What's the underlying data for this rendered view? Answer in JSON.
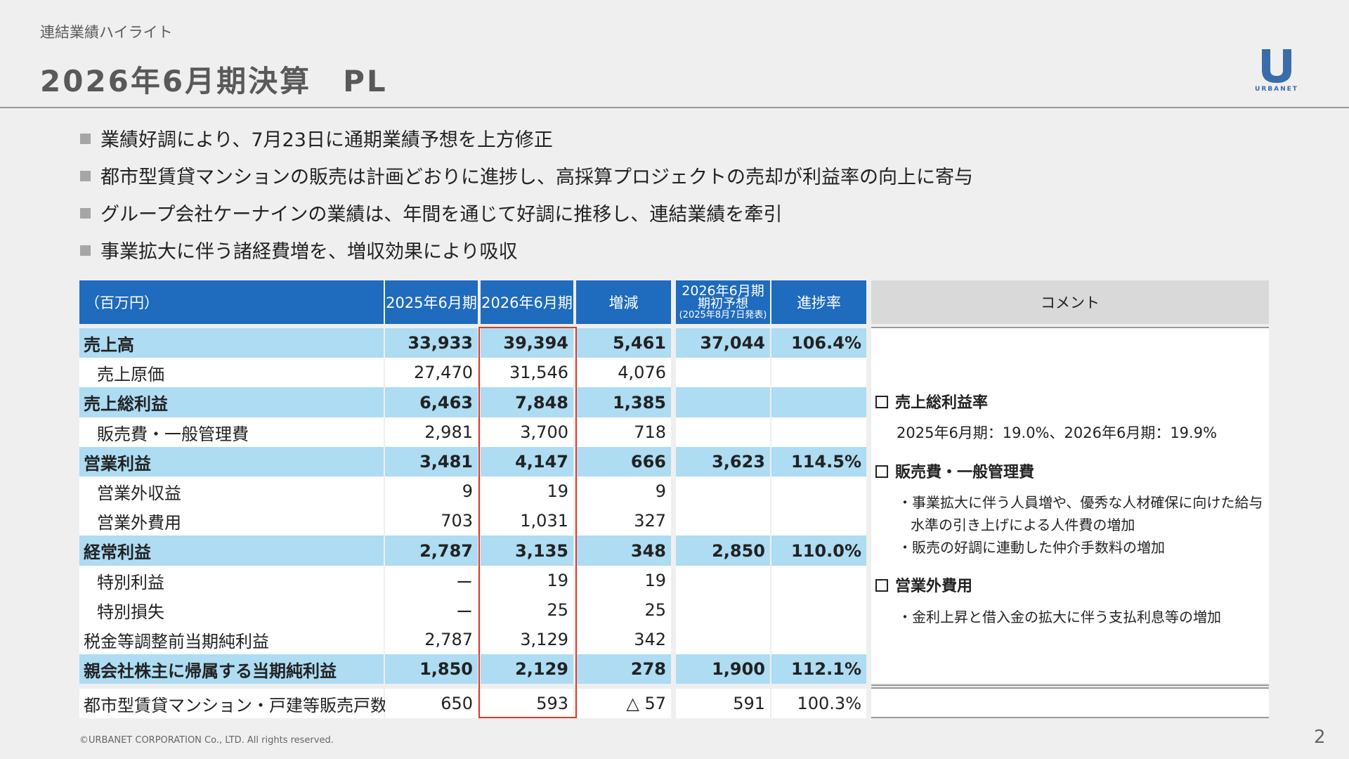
{
  "header": {
    "section_label": "連結業績ハイライト",
    "title": "2026年6月期決算　PL",
    "logo_text": "URBANET"
  },
  "bullets": [
    "業績好調により、7月23日に通期業績予想を上方修正",
    "都市型賃貸マンションの販売は計画どおりに進捗し、高採算プロジェクトの売却が利益率の向上に寄与",
    "グループ会社ケーナインの業績は、年間を通じて好調に推移し、連結業績を牽引",
    "事業拡大に伴う諸経費増を、増収効果により吸収"
  ],
  "table": {
    "headers": {
      "unit": "（百万円）",
      "fy2025": "2025年6月期",
      "fy2026": "2026年6月期",
      "change": "増減",
      "forecast_line1": "2026年6月期",
      "forecast_line2": "期初予想",
      "forecast_line3": "(2025年8月7日発表)",
      "progress": "進捗率"
    },
    "rows": [
      {
        "label": "売上高",
        "fy2025": "33,933",
        "fy2026": "39,394",
        "change": "5,461",
        "forecast": "37,044",
        "progress": "106.4%",
        "highlight": true,
        "indent": false
      },
      {
        "label": "売上原価",
        "fy2025": "27,470",
        "fy2026": "31,546",
        "change": "4,076",
        "forecast": "",
        "progress": "",
        "highlight": false,
        "indent": true
      },
      {
        "label": "売上総利益",
        "fy2025": "6,463",
        "fy2026": "7,848",
        "change": "1,385",
        "forecast": "",
        "progress": "",
        "highlight": true,
        "indent": false
      },
      {
        "label": "販売費・一般管理費",
        "fy2025": "2,981",
        "fy2026": "3,700",
        "change": "718",
        "forecast": "",
        "progress": "",
        "highlight": false,
        "indent": true
      },
      {
        "label": "営業利益",
        "fy2025": "3,481",
        "fy2026": "4,147",
        "change": "666",
        "forecast": "3,623",
        "progress": "114.5%",
        "highlight": true,
        "indent": false
      },
      {
        "label": "営業外収益",
        "fy2025": "9",
        "fy2026": "19",
        "change": "9",
        "forecast": "",
        "progress": "",
        "highlight": false,
        "indent": true
      },
      {
        "label": "営業外費用",
        "fy2025": "703",
        "fy2026": "1,031",
        "change": "327",
        "forecast": "",
        "progress": "",
        "highlight": false,
        "indent": true
      },
      {
        "label": "経常利益",
        "fy2025": "2,787",
        "fy2026": "3,135",
        "change": "348",
        "forecast": "2,850",
        "progress": "110.0%",
        "highlight": true,
        "indent": false
      },
      {
        "label": "特別利益",
        "fy2025": "ー",
        "fy2026": "19",
        "change": "19",
        "forecast": "",
        "progress": "",
        "highlight": false,
        "indent": true
      },
      {
        "label": "特別損失",
        "fy2025": "ー",
        "fy2026": "25",
        "change": "25",
        "forecast": "",
        "progress": "",
        "highlight": false,
        "indent": true
      },
      {
        "label": "税金等調整前当期純利益",
        "fy2025": "2,787",
        "fy2026": "3,129",
        "change": "342",
        "forecast": "",
        "progress": "",
        "highlight": false,
        "indent": false
      },
      {
        "label": "親会社株主に帰属する当期純利益",
        "fy2025": "1,850",
        "fy2026": "2,129",
        "change": "278",
        "forecast": "1,900",
        "progress": "112.1%",
        "highlight": true,
        "indent": false
      }
    ],
    "units_row": {
      "label": "都市型賃貸マンション・戸建等販売戸数",
      "fy2025": "650",
      "fy2026": "593",
      "change": "△ 57",
      "forecast": "591",
      "progress": "100.3%"
    }
  },
  "comments": {
    "header": "コメント",
    "gross_margin_title": "売上総利益率",
    "gross_margin_text": "2025年6月期：19.0%、2026年6月期：19.9%",
    "sga_title": "販売費・一般管理費",
    "sga_item1_line1": "・事業拡大に伴う人員増や、優秀な人材確保に向けた給与",
    "sga_item1_line2": "水準の引き上げによる人件費の増加",
    "sga_item2": "・販売の好調に連動した仲介手数料の増加",
    "nonop_title": "営業外費用",
    "nonop_item1": "・金利上昇と借入金の拡大に伴う支払利息等の増加"
  },
  "footer": {
    "copyright": "©URBANET CORPORATION Co., LTD. All rights reserved.",
    "page_number": "2"
  },
  "colors": {
    "header_blue": "#1f6bbd",
    "highlight_row": "#addcf3",
    "red_box": "#e03a2c",
    "logo_blue": "#3a6da8"
  }
}
